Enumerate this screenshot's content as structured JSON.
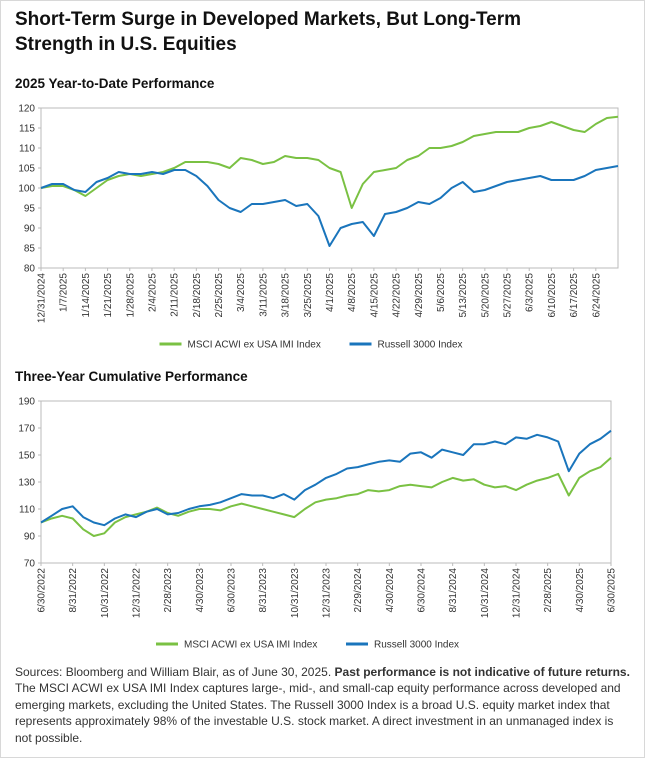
{
  "title": "Short-Term Surge in Developed Markets, But Long-Term Strength in U.S. Equities",
  "chart_data": [
    {
      "type": "line",
      "title": "2025 Year-to-Date Performance",
      "categories": [
        "12/31/2024",
        null,
        "1/7/2025",
        null,
        "1/14/2025",
        null,
        "1/21/2025",
        null,
        "1/28/2025",
        null,
        "2/4/2025",
        null,
        "2/11/2025",
        null,
        "2/18/2025",
        null,
        "2/25/2025",
        null,
        "3/4/2025",
        null,
        "3/11/2025",
        null,
        "3/18/2025",
        null,
        "3/25/2025",
        null,
        "4/1/2025",
        null,
        "4/8/2025",
        null,
        "4/15/2025",
        null,
        "4/22/2025",
        null,
        "4/29/2025",
        null,
        "5/6/2025",
        null,
        "5/13/2025",
        null,
        "5/20/2025",
        null,
        "5/27/2025",
        null,
        "6/3/2025",
        null,
        "6/10/2025",
        null,
        "6/17/2025",
        null,
        "6/24/2025",
        null,
        null
      ],
      "series": [
        {
          "name": "MSCI ACWI ex USA IMI Index",
          "color": "#7ac143",
          "values": [
            100,
            100.5,
            100.5,
            99.5,
            98,
            100,
            102,
            103,
            103.5,
            103,
            103.5,
            104,
            105,
            106.5,
            106.5,
            106.5,
            106,
            105,
            107.5,
            107,
            106,
            106.5,
            108,
            107.5,
            107.5,
            107,
            105,
            104,
            95,
            101,
            104,
            104.5,
            105,
            107,
            108,
            110,
            110,
            110.5,
            111.5,
            113,
            113.5,
            114,
            114,
            114,
            115,
            115.5,
            116.5,
            115.5,
            114.5,
            114,
            116,
            117.5,
            117.8
          ]
        },
        {
          "name": "Russell 3000 Index",
          "color": "#1a75bc",
          "values": [
            100,
            101,
            101,
            99.5,
            99,
            101.5,
            102.5,
            104,
            103.5,
            103.5,
            104,
            103.5,
            104.5,
            104.5,
            103,
            100.5,
            97,
            95,
            94,
            96,
            96,
            96.5,
            97,
            95.5,
            96,
            93,
            85.5,
            90,
            91,
            91.5,
            88,
            93.5,
            94,
            95,
            96.5,
            96,
            97.5,
            100,
            101.5,
            99,
            99.5,
            100.5,
            101.5,
            102,
            102.5,
            103,
            102,
            102,
            102,
            103,
            104.5,
            105,
            105.5
          ]
        }
      ],
      "ylim": [
        80,
        120
      ],
      "yticks": [
        80,
        85,
        90,
        95,
        100,
        105,
        110,
        115,
        120
      ],
      "grid": false,
      "legend": "bottom"
    },
    {
      "type": "line",
      "title": "Three-Year Cumulative Performance",
      "categories": [
        "6/30/2022",
        null,
        null,
        "8/31/2022",
        null,
        null,
        "10/31/2022",
        null,
        null,
        "12/31/2022",
        null,
        null,
        "2/28/2023",
        null,
        null,
        "4/30/2023",
        null,
        null,
        "6/30/2023",
        null,
        null,
        "8/31/2023",
        null,
        null,
        "10/31/2023",
        null,
        null,
        "12/31/2023",
        null,
        null,
        "2/29/2024",
        null,
        null,
        "4/30/2024",
        null,
        null,
        "6/30/2024",
        null,
        null,
        "8/31/2024",
        null,
        null,
        "10/31/2024",
        null,
        null,
        "12/31/2024",
        null,
        null,
        "2/28/2025",
        null,
        null,
        "4/30/2025",
        null,
        null,
        "6/30/2025"
      ],
      "series": [
        {
          "name": "MSCI ACWI ex USA IMI Index",
          "color": "#7ac143",
          "values": [
            100,
            103,
            105,
            103,
            95,
            90,
            92,
            100,
            104,
            106,
            108,
            111,
            107,
            105,
            108,
            110,
            110,
            109,
            112,
            114,
            112,
            110,
            108,
            106,
            104,
            110,
            115,
            117,
            118,
            120,
            121,
            124,
            123,
            124,
            127,
            128,
            127,
            126,
            130,
            133,
            131,
            132,
            128,
            126,
            127,
            124,
            128,
            131,
            133,
            136,
            120,
            133,
            138,
            141,
            148
          ]
        },
        {
          "name": "Russell 3000 Index",
          "color": "#1a75bc",
          "values": [
            100,
            105,
            110,
            112,
            104,
            100,
            98,
            103,
            106,
            104,
            108,
            110,
            106,
            107,
            110,
            112,
            113,
            115,
            118,
            121,
            120,
            120,
            118,
            121,
            117,
            124,
            128,
            133,
            136,
            140,
            141,
            143,
            145,
            146,
            145,
            151,
            152,
            148,
            154,
            152,
            150,
            158,
            158,
            160,
            158,
            163,
            162,
            165,
            163,
            160,
            138,
            151,
            158,
            162,
            168
          ]
        }
      ],
      "ylim": [
        70,
        190
      ],
      "yticks": [
        70,
        90,
        110,
        130,
        150,
        170,
        190
      ],
      "grid": false,
      "legend": "bottom"
    }
  ],
  "footnote": {
    "source": "Sources: Bloomberg and William Blair, as of June 30, 2025.",
    "bold": "Past performance is not indicative of future returns.",
    "rest": "The MSCI ACWI ex USA IMI Index captures large-, mid-, and small-cap equity performance across developed and emerging markets, excluding the United States. The Russell 3000 Index is a broad U.S. equity market index that represents approximately 98% of the investable U.S. stock market. A direct investment in an unmanaged index is not possible."
  }
}
